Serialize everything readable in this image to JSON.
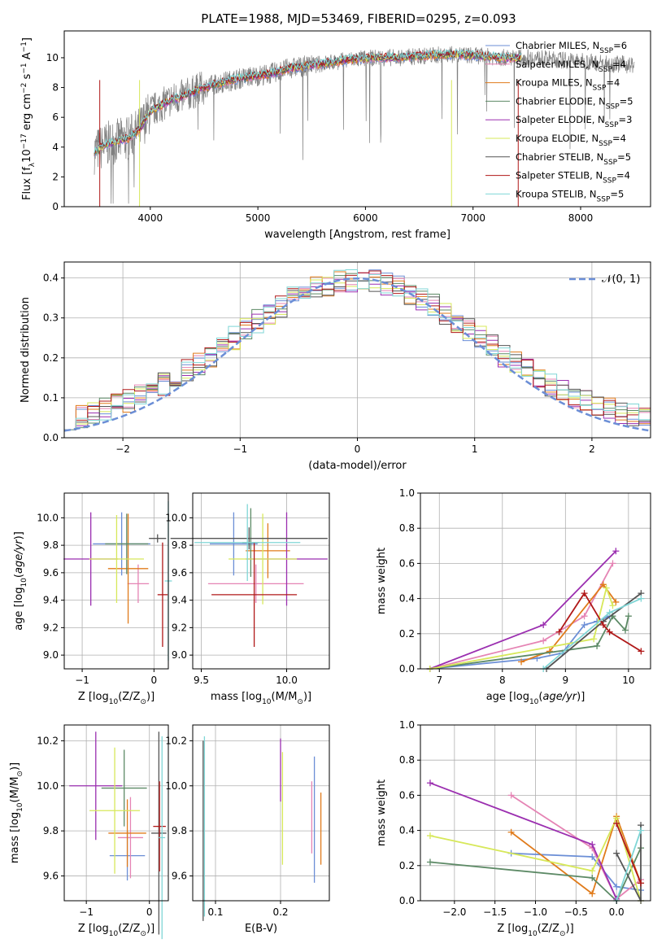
{
  "figure_title": "PLATE=1988, MJD=53469, FIBERID=0295, z=0.093",
  "models": [
    {
      "name": "Chabrier MILES, N",
      "nssp": "=6",
      "color": "#6b8ed6"
    },
    {
      "name": "Salpeter MILES, N",
      "nssp": "=4",
      "color": "#e584b4"
    },
    {
      "name": "Kroupa MILES, N",
      "nssp": "=4",
      "color": "#e07b1b"
    },
    {
      "name": "Chabrier ELODIE, N",
      "nssp": "=5",
      "color": "#5d8a66"
    },
    {
      "name": "Salpeter ELODIE, N",
      "nssp": "=3",
      "color": "#9b2fb0"
    },
    {
      "name": "Kroupa ELODIE, N",
      "nssp": "=4",
      "color": "#d7e85a"
    },
    {
      "name": "Chabrier STELIB, N",
      "nssp": "=5",
      "color": "#555555"
    },
    {
      "name": "Salpeter STELIB, N",
      "nssp": "=4",
      "color": "#b01818"
    },
    {
      "name": "Kroupa STELIB, N",
      "nssp": "=5",
      "color": "#7fd6d6"
    }
  ],
  "sub_ssp": "SSP",
  "chart_data": [
    {
      "id": "spectrum",
      "type": "line",
      "xlabel": "wavelength [Angstrom, rest frame]",
      "ylabel": "Flux [f",
      "ylabel_parts": [
        "λ",
        "10",
        "−17",
        " erg cm",
        "−2",
        " s",
        "−1",
        " A",
        "−1",
        "]"
      ],
      "xlim": [
        3200,
        8650
      ],
      "ylim": [
        0,
        11.8
      ],
      "xticks": [
        "4000",
        "5000",
        "6000",
        "7000",
        "8000"
      ],
      "xtick_values": [
        4000,
        5000,
        6000,
        7000,
        8000
      ],
      "yticks": [
        "0",
        "2",
        "4",
        "6",
        "8",
        "10"
      ],
      "ytick_values": [
        0,
        2,
        4,
        6,
        8,
        10
      ],
      "continuum": {
        "x": [
          3480,
          3600,
          3700,
          3800,
          3900,
          4000,
          4100,
          4200,
          4300,
          4500,
          4700,
          4900,
          5100,
          5300,
          5500,
          5700,
          5900,
          6100,
          6300,
          6500,
          6700,
          6900,
          7100,
          7300,
          7500,
          7700,
          7900,
          8100,
          8300,
          8500
        ],
        "y": [
          3.7,
          4.2,
          4.4,
          4.6,
          5.2,
          6.4,
          6.8,
          7.2,
          7.4,
          8.0,
          8.4,
          8.7,
          8.9,
          9.3,
          9.5,
          9.7,
          9.9,
          10.0,
          10.0,
          10.1,
          10.2,
          10.2,
          10.1,
          10.0,
          10.0,
          9.9,
          9.8,
          9.7,
          9.6,
          9.5
        ]
      }
    },
    {
      "id": "residuals",
      "type": "step",
      "xlabel": "(data-model)/error",
      "ylabel": "Normed distribution",
      "xlim": [
        -2.5,
        2.5
      ],
      "ylim": [
        0,
        0.44
      ],
      "xticks": [
        "−2",
        "−1",
        "0",
        "1",
        "2"
      ],
      "xtick_values": [
        -2,
        -1,
        0,
        1,
        2
      ],
      "yticks": [
        "0.0",
        "0.1",
        "0.2",
        "0.3",
        "0.4"
      ],
      "ytick_values": [
        0,
        0.1,
        0.2,
        0.3,
        0.4
      ],
      "legend_label": "𝒩(0, 1)",
      "gaussian": {
        "mu": 0,
        "sigma": 1,
        "color": "#6b8ed6"
      },
      "bins": 50
    },
    {
      "id": "age-vs-Z",
      "type": "errorbar",
      "xlabel": "Z [log",
      "xlabel_parts": [
        "10",
        "(Z/Z",
        "⊙",
        ")]"
      ],
      "ylabel": "age  [log",
      "ylabel_parts": [
        "10",
        "(age/yr)]"
      ],
      "xlim": [
        -1.25,
        0.2
      ],
      "ylim": [
        8.9,
        10.18
      ],
      "xticks": [
        "−1",
        "0"
      ],
      "xtick_values": [
        -1,
        0
      ],
      "yticks": [
        "9.0",
        "9.2",
        "9.4",
        "9.6",
        "9.8",
        "10.0"
      ],
      "ytick_values": [
        9.0,
        9.2,
        9.4,
        9.6,
        9.8,
        10.0
      ],
      "points": [
        {
          "x": -0.45,
          "xerr": 0.4,
          "y": 9.81,
          "yerr": 0.23,
          "c": "#6b8ed6"
        },
        {
          "x": -0.22,
          "xerr": 0.15,
          "y": 9.52,
          "yerr": 0.14,
          "c": "#e584b4"
        },
        {
          "x": -0.36,
          "xerr": 0.28,
          "y": 9.63,
          "yerr": 0.4,
          "c": "#e07b1b"
        },
        {
          "x": -0.38,
          "xerr": 0.3,
          "y": 9.81,
          "yerr": 0.22,
          "c": "#5d8a66"
        },
        {
          "x": -0.88,
          "xerr": 0.38,
          "y": 9.7,
          "yerr": 0.34,
          "c": "#9b2fb0"
        },
        {
          "x": -0.52,
          "xerr": 0.38,
          "y": 9.7,
          "yerr": 0.32,
          "c": "#d7e85a"
        },
        {
          "x": 0.05,
          "xerr": 0.12,
          "y": 9.85,
          "yerr": 0.03,
          "c": "#555555"
        },
        {
          "x": 0.12,
          "xerr": 0.07,
          "y": 9.44,
          "yerr": 0.38,
          "c": "#b01818"
        },
        {
          "x": 0.2,
          "xerr": 0.05,
          "y": 9.54,
          "yerr": 0.58,
          "c": "#7fd6d6"
        }
      ]
    },
    {
      "id": "age-vs-mass",
      "type": "errorbar",
      "xlabel": "mass [log",
      "xlabel_parts": [
        "10",
        "(M/M",
        "⊙",
        ")]"
      ],
      "xlim": [
        9.45,
        10.25
      ],
      "ylim": [
        8.9,
        10.18
      ],
      "xticks": [
        "9.5",
        "10.0"
      ],
      "xtick_values": [
        9.5,
        10.0
      ],
      "yticks": [
        "9.0",
        "9.2",
        "9.4",
        "9.6",
        "9.8",
        "10.0"
      ],
      "ytick_values": [
        9.0,
        9.2,
        9.4,
        9.6,
        9.8,
        10.0
      ],
      "points": [
        {
          "x": 9.69,
          "xerr": 0.14,
          "y": 9.81,
          "yerr": 0.23,
          "c": "#6b8ed6"
        },
        {
          "x": 9.82,
          "xerr": 0.28,
          "y": 9.52,
          "yerr": 0.14,
          "c": "#e584b4"
        },
        {
          "x": 9.89,
          "xerr": 0.13,
          "y": 9.76,
          "yerr": 0.2,
          "c": "#e07b1b"
        },
        {
          "x": 9.79,
          "xerr": 0.05,
          "y": 9.82,
          "yerr": 0.25,
          "c": "#5d8a66"
        },
        {
          "x": 10.0,
          "xerr": 0.24,
          "y": 9.7,
          "yerr": 0.34,
          "c": "#9b2fb0"
        },
        {
          "x": 9.86,
          "xerr": 0.2,
          "y": 9.7,
          "yerr": 0.33,
          "c": "#d7e85a"
        },
        {
          "x": 9.78,
          "xerr": 0.46,
          "y": 9.85,
          "yerr": 0.08,
          "c": "#555555"
        },
        {
          "x": 9.81,
          "xerr": 0.25,
          "y": 9.44,
          "yerr": 0.38,
          "c": "#b01818"
        },
        {
          "x": 9.77,
          "xerr": 0.31,
          "y": 9.82,
          "yerr": 0.28,
          "c": "#7fd6d6"
        }
      ]
    },
    {
      "id": "weight-vs-age",
      "type": "line",
      "xlabel": "age  [log",
      "xlabel_parts": [
        "10",
        "(age/yr)]"
      ],
      "ylabel": "mass weight",
      "xlim": [
        6.7,
        10.35
      ],
      "ylim": [
        0,
        1.0
      ],
      "xticks": [
        "7",
        "8",
        "9",
        "10"
      ],
      "xtick_values": [
        7,
        8,
        9,
        10
      ],
      "yticks": [
        "0.0",
        "0.2",
        "0.4",
        "0.6",
        "0.8",
        "1.0"
      ],
      "ytick_values": [
        0,
        0.2,
        0.4,
        0.6,
        0.8,
        1.0
      ],
      "series": [
        {
          "c": "#6b8ed6",
          "x": [
            6.85,
            8.55,
            8.95,
            9.3,
            9.5,
            9.7
          ],
          "y": [
            0.0,
            0.06,
            0.09,
            0.25,
            0.27,
            0.3
          ]
        },
        {
          "c": "#e584b4",
          "x": [
            6.85,
            8.65,
            9.3,
            9.75
          ],
          "y": [
            0.0,
            0.16,
            0.3,
            0.6
          ]
        },
        {
          "c": "#e07b1b",
          "x": [
            8.3,
            8.75,
            9.6,
            9.8
          ],
          "y": [
            0.04,
            0.1,
            0.48,
            0.38
          ]
        },
        {
          "c": "#5d8a66",
          "x": [
            6.85,
            9.5,
            9.75,
            9.95,
            10.0
          ],
          "y": [
            0.0,
            0.13,
            0.3,
            0.22,
            0.3
          ]
        },
        {
          "c": "#9b2fb0",
          "x": [
            6.85,
            8.65,
            9.8
          ],
          "y": [
            0.0,
            0.25,
            0.67
          ]
        },
        {
          "c": "#d7e85a",
          "x": [
            6.85,
            9.45,
            9.65,
            9.75
          ],
          "y": [
            0.0,
            0.17,
            0.46,
            0.36
          ]
        },
        {
          "c": "#555555",
          "x": [
            8.7,
            9.6,
            10.2
          ],
          "y": [
            0.0,
            0.27,
            0.43
          ]
        },
        {
          "c": "#b01818",
          "x": [
            8.9,
            9.3,
            9.6,
            9.7,
            10.2
          ],
          "y": [
            0.21,
            0.43,
            0.25,
            0.21,
            0.1
          ]
        },
        {
          "c": "#7fd6d6",
          "x": [
            8.65,
            9.7,
            10.2
          ],
          "y": [
            0.0,
            0.32,
            0.4
          ]
        }
      ]
    },
    {
      "id": "mass-vs-Z",
      "type": "errorbar",
      "xlabel": "Z [log",
      "xlabel_parts": [
        "10",
        "(Z/Z",
        "⊙",
        ")]"
      ],
      "ylabel": "mass [log",
      "ylabel_parts": [
        "10",
        "(M/M",
        "⊙",
        ")]"
      ],
      "xlim": [
        -1.35,
        0.3
      ],
      "ylim": [
        9.49,
        10.27
      ],
      "xticks": [
        "−1",
        "0"
      ],
      "xtick_values": [
        -1,
        0
      ],
      "yticks": [
        "9.6",
        "9.8",
        "10.0",
        "10.2"
      ],
      "ytick_values": [
        9.6,
        9.8,
        10.0,
        10.2
      ],
      "points": [
        {
          "x": -0.35,
          "xerr": 0.28,
          "y": 9.69,
          "yerr": 0.11,
          "c": "#6b8ed6"
        },
        {
          "x": -0.3,
          "xerr": 0.2,
          "y": 9.77,
          "yerr": 0.18,
          "c": "#e584b4"
        },
        {
          "x": -0.35,
          "xerr": 0.3,
          "y": 9.79,
          "yerr": 0.15,
          "c": "#e07b1b"
        },
        {
          "x": -0.4,
          "xerr": 0.36,
          "y": 9.99,
          "yerr": 0.17,
          "c": "#5d8a66"
        },
        {
          "x": -0.85,
          "xerr": 0.42,
          "y": 10.0,
          "yerr": 0.24,
          "c": "#9b2fb0"
        },
        {
          "x": -0.55,
          "xerr": 0.4,
          "y": 9.89,
          "yerr": 0.28,
          "c": "#d7e85a"
        },
        {
          "x": 0.15,
          "xerr": 0.12,
          "y": 9.79,
          "yerr": 0.45,
          "c": "#555555"
        },
        {
          "x": 0.16,
          "xerr": 0.1,
          "y": 9.82,
          "yerr": 0.2,
          "c": "#b01818"
        },
        {
          "x": 0.2,
          "xerr": 0.05,
          "y": 9.77,
          "yerr": 0.45,
          "c": "#7fd6d6"
        }
      ]
    },
    {
      "id": "mass-vs-EBV",
      "type": "errorbar",
      "xlabel": "E(B-V)",
      "xlim": [
        0.065,
        0.275
      ],
      "ylim": [
        9.49,
        10.27
      ],
      "xticks": [
        "0.1",
        "0.2"
      ],
      "xtick_values": [
        0.1,
        0.2
      ],
      "yticks": [
        "9.6",
        "9.8",
        "10.0",
        "10.2"
      ],
      "ytick_values": [
        9.6,
        9.8,
        10.0,
        10.2
      ],
      "points": [
        {
          "x": 0.081,
          "xerr": 0,
          "y": 9.8,
          "yerr": 0.4,
          "c": "#555555"
        },
        {
          "x": 0.083,
          "xerr": 0,
          "y": 9.82,
          "yerr": 0.4,
          "c": "#7fd6d6"
        },
        {
          "x": 0.2,
          "xerr": 0,
          "y": 10.07,
          "yerr": 0.14,
          "c": "#9b2fb0"
        },
        {
          "x": 0.203,
          "xerr": 0,
          "y": 9.9,
          "yerr": 0.25,
          "c": "#d7e85a"
        },
        {
          "x": 0.248,
          "xerr": 0,
          "y": 9.86,
          "yerr": 0.16,
          "c": "#e584b4"
        },
        {
          "x": 0.252,
          "xerr": 0,
          "y": 9.85,
          "yerr": 0.28,
          "c": "#6b8ed6"
        },
        {
          "x": 0.262,
          "xerr": 0,
          "y": 9.81,
          "yerr": 0.16,
          "c": "#e07b1b"
        }
      ]
    },
    {
      "id": "weight-vs-Z",
      "type": "line",
      "xlabel": "Z [log",
      "xlabel_parts": [
        "10",
        "(Z/Z",
        "⊙",
        ")]"
      ],
      "ylabel": "mass weight",
      "xlim": [
        -2.42,
        0.42
      ],
      "ylim": [
        0,
        1.0
      ],
      "xticks": [
        "−2.0",
        "−1.5",
        "−1.0",
        "−0.5",
        "0.0"
      ],
      "xtick_values": [
        -2.0,
        -1.5,
        -1.0,
        -0.5,
        0.0
      ],
      "yticks": [
        "0.0",
        "0.2",
        "0.4",
        "0.6",
        "0.8",
        "1.0"
      ],
      "ytick_values": [
        0,
        0.2,
        0.4,
        0.6,
        0.8,
        1.0
      ],
      "series": [
        {
          "c": "#6b8ed6",
          "x": [
            -1.3,
            -0.3,
            0.0,
            0.3
          ],
          "y": [
            0.27,
            0.25,
            0.08,
            0.06
          ]
        },
        {
          "c": "#e584b4",
          "x": [
            -1.3,
            -0.3,
            0.0,
            0.3
          ],
          "y": [
            0.6,
            0.3,
            0.01,
            0.12
          ]
        },
        {
          "c": "#e07b1b",
          "x": [
            -1.3,
            -0.3,
            0.0,
            0.3
          ],
          "y": [
            0.39,
            0.04,
            0.48,
            0.1
          ]
        },
        {
          "c": "#5d8a66",
          "x": [
            -2.3,
            -0.3,
            0.0,
            0.3
          ],
          "y": [
            0.22,
            0.13,
            0.0,
            0.3
          ]
        },
        {
          "c": "#9b2fb0",
          "x": [
            -2.3,
            -0.3,
            0.0
          ],
          "y": [
            0.67,
            0.32,
            0.01
          ]
        },
        {
          "c": "#d7e85a",
          "x": [
            -2.3,
            -0.3,
            0.0,
            0.3
          ],
          "y": [
            0.37,
            0.17,
            0.47,
            0.0
          ]
        },
        {
          "c": "#555555",
          "x": [
            0.0,
            0.3,
            0.3
          ],
          "y": [
            0.27,
            0.0,
            0.43
          ]
        },
        {
          "c": "#b01818",
          "x": [
            0.0,
            0.3
          ],
          "y": [
            0.44,
            0.1
          ]
        },
        {
          "c": "#7fd6d6",
          "x": [
            0.0,
            0.3
          ],
          "y": [
            0.0,
            0.4
          ]
        }
      ]
    }
  ]
}
